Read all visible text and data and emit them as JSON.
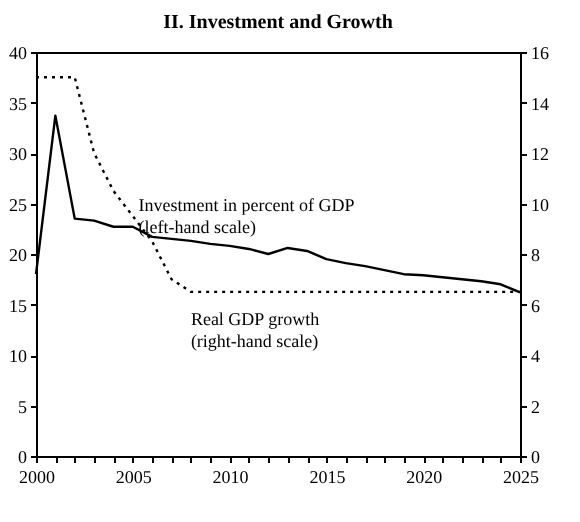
{
  "chart_data": {
    "type": "line",
    "title": "II. Investment and Growth",
    "x": [
      2000,
      2001,
      2002,
      2003,
      2004,
      2005,
      2006,
      2007,
      2008,
      2009,
      2010,
      2011,
      2012,
      2013,
      2014,
      2015,
      2016,
      2017,
      2018,
      2019,
      2020,
      2021,
      2022,
      2023,
      2024,
      2025
    ],
    "series": [
      {
        "name": "Investment in percent of GDP\n(left-hand scale)",
        "color": "#000000",
        "line_style": "solid",
        "values": [
          18.0,
          33.7,
          23.5,
          23.3,
          22.7,
          22.7,
          21.7,
          21.5,
          21.3,
          21.0,
          20.8,
          20.5,
          20.0,
          20.6,
          20.3,
          19.5,
          19.1,
          18.8,
          18.4,
          18.0,
          17.9,
          17.7,
          17.5,
          17.3,
          17.0,
          16.2
        ]
      },
      {
        "name": "Real GDP growth\n(right-hand scale)",
        "color": "#000000",
        "line_style": "dotted",
        "axis": "y2",
        "values": [
          15.0,
          15.0,
          15.0,
          12.0,
          10.5,
          9.5,
          8.5,
          7.0,
          6.5,
          6.5,
          6.5,
          6.5,
          6.5,
          6.5,
          6.5,
          6.5,
          6.5,
          6.5,
          6.5,
          6.5,
          6.5,
          6.5,
          6.5,
          6.5,
          6.5,
          6.5
        ]
      }
    ],
    "xlim": [
      2000,
      2025
    ],
    "xticks": [
      2000,
      {
        "value": 2001,
        "label": null
      },
      {
        "value": 2002,
        "label": null
      },
      {
        "value": 2003,
        "label": null
      },
      {
        "value": 2004,
        "label": null
      },
      2005,
      {
        "value": 2006,
        "label": null
      },
      {
        "value": 2007,
        "label": null
      },
      {
        "value": 2008,
        "label": null
      },
      {
        "value": 2009,
        "label": null
      },
      2010,
      {
        "value": 2011,
        "label": null
      },
      {
        "value": 2012,
        "label": null
      },
      {
        "value": 2013,
        "label": null
      },
      {
        "value": 2014,
        "label": null
      },
      2015,
      {
        "value": 2016,
        "label": null
      },
      {
        "value": 2017,
        "label": null
      },
      {
        "value": 2018,
        "label": null
      },
      {
        "value": 2019,
        "label": null
      },
      2020,
      {
        "value": 2021,
        "label": null
      },
      {
        "value": 2022,
        "label": null
      },
      {
        "value": 2023,
        "label": null
      },
      {
        "value": 2024,
        "label": null
      },
      2025
    ],
    "ylim": [
      0,
      40
    ],
    "yticks": [
      0,
      5,
      10,
      15,
      20,
      25,
      30,
      35,
      40
    ],
    "y2lim": [
      0,
      16
    ],
    "y2ticks": [
      0,
      2,
      4,
      6,
      8,
      10,
      12,
      14,
      16
    ],
    "grid": false,
    "legend": false,
    "marker": "none"
  }
}
